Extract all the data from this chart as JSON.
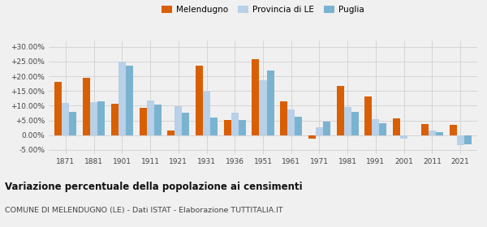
{
  "years": [
    1871,
    1881,
    1901,
    1911,
    1921,
    1931,
    1936,
    1951,
    1961,
    1971,
    1981,
    1991,
    2001,
    2011,
    2021
  ],
  "melendugno": [
    18.0,
    19.5,
    10.7,
    9.3,
    1.5,
    23.6,
    5.1,
    25.8,
    11.5,
    -1.3,
    16.8,
    13.0,
    5.8,
    3.7,
    3.6
  ],
  "provincia_le": [
    11.0,
    11.2,
    25.0,
    11.8,
    9.8,
    14.7,
    7.7,
    18.5,
    8.8,
    2.7,
    9.5,
    5.5,
    -1.3,
    1.7,
    -3.3
  ],
  "puglia": [
    7.8,
    11.6,
    23.5,
    10.5,
    7.7,
    6.0,
    5.2,
    21.8,
    6.2,
    4.7,
    8.0,
    4.1,
    0.0,
    0.9,
    -3.0
  ],
  "color_melendugno": "#d95f02",
  "color_provincia": "#b8d0e8",
  "color_puglia": "#7ab3d0",
  "title": "Variazione percentuale della popolazione ai censimenti",
  "subtitle": "COMUNE DI MELENDUGNO (LE) - Dati ISTAT - Elaborazione TUTTITALIA.IT",
  "ylim": [
    -6.5,
    32
  ],
  "yticks": [
    -5,
    0,
    5,
    10,
    15,
    20,
    25,
    30
  ],
  "background_color": "#f0f0f0",
  "grid_color": "#d0d0d0"
}
